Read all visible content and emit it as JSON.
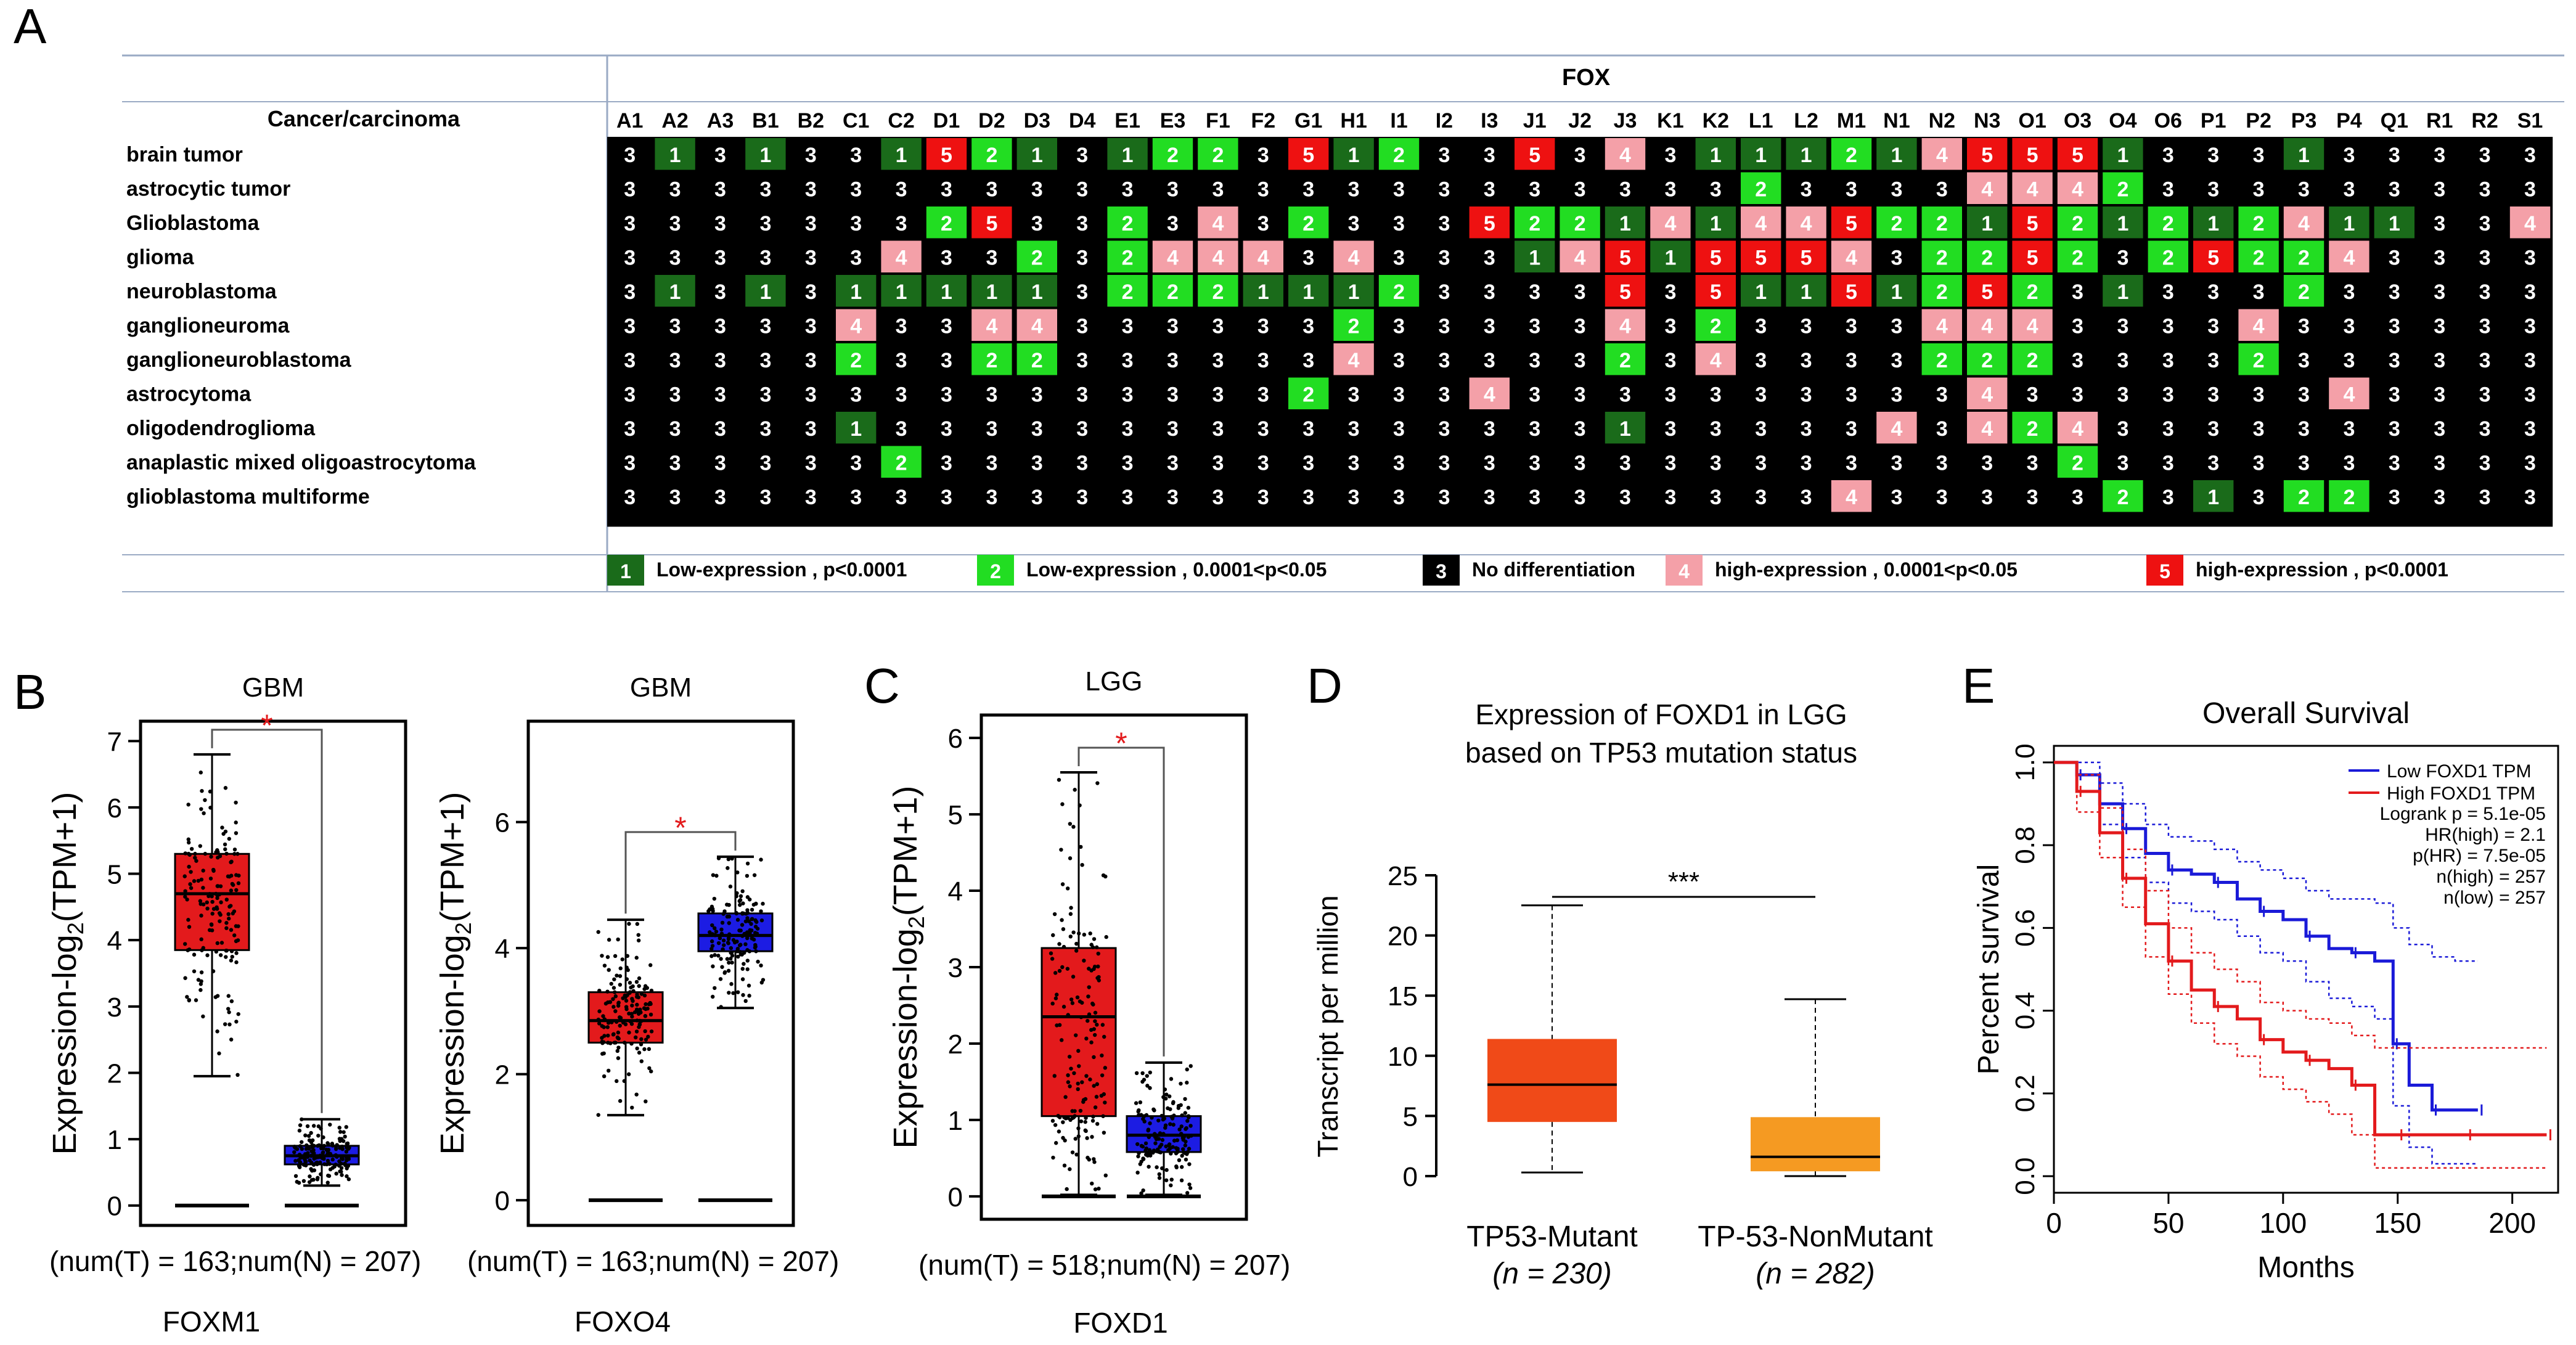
{
  "panel_letters": {
    "A": "A",
    "B": "B",
    "C": "C",
    "D": "D",
    "E": "E"
  },
  "chart_data": [
    {
      "panel": "A",
      "type": "table",
      "group_label": "FOX",
      "row_header": "Cancer/carcinoma",
      "columns": [
        "A1",
        "A2",
        "A3",
        "B1",
        "B2",
        "C1",
        "C2",
        "D1",
        "D2",
        "D3",
        "D4",
        "E1",
        "E3",
        "F1",
        "F2",
        "G1",
        "H1",
        "I1",
        "I2",
        "I3",
        "J1",
        "J2",
        "J3",
        "K1",
        "K2",
        "L1",
        "L2",
        "M1",
        "N1",
        "N2",
        "N3",
        "O1",
        "O3",
        "O4",
        "O6",
        "P1",
        "P2",
        "P3",
        "P4",
        "Q1",
        "R1",
        "R2",
        "S1"
      ],
      "rows": [
        {
          "name": "brain tumor",
          "values": [
            3,
            1,
            3,
            1,
            3,
            3,
            1,
            5,
            2,
            1,
            3,
            1,
            2,
            2,
            3,
            5,
            1,
            2,
            3,
            3,
            5,
            3,
            4,
            3,
            1,
            1,
            1,
            2,
            1,
            4,
            5,
            5,
            5,
            1,
            3,
            3,
            3,
            1,
            3,
            3,
            3,
            3,
            3
          ]
        },
        {
          "name": "astrocytic tumor",
          "values": [
            3,
            3,
            3,
            3,
            3,
            3,
            3,
            3,
            3,
            3,
            3,
            3,
            3,
            3,
            3,
            3,
            3,
            3,
            3,
            3,
            3,
            3,
            3,
            3,
            3,
            2,
            3,
            3,
            3,
            3,
            4,
            4,
            4,
            2,
            3,
            3,
            3,
            3,
            3,
            3,
            3,
            3,
            3
          ]
        },
        {
          "name": "Glioblastoma",
          "values": [
            3,
            3,
            3,
            3,
            3,
            3,
            3,
            2,
            5,
            3,
            3,
            2,
            3,
            4,
            3,
            2,
            3,
            3,
            3,
            5,
            2,
            2,
            1,
            4,
            1,
            4,
            4,
            5,
            2,
            2,
            1,
            5,
            2,
            1,
            2,
            1,
            2,
            4,
            1,
            1,
            3,
            3,
            4
          ]
        },
        {
          "name": "glioma",
          "values": [
            3,
            3,
            3,
            3,
            3,
            3,
            4,
            3,
            3,
            2,
            3,
            2,
            4,
            4,
            4,
            3,
            4,
            3,
            3,
            3,
            1,
            4,
            5,
            1,
            5,
            5,
            5,
            4,
            3,
            2,
            2,
            5,
            2,
            3,
            2,
            5,
            2,
            2,
            4,
            3,
            3,
            3,
            3
          ]
        },
        {
          "name": "neuroblastoma",
          "values": [
            3,
            1,
            3,
            1,
            3,
            1,
            1,
            1,
            1,
            1,
            3,
            2,
            2,
            2,
            1,
            1,
            1,
            2,
            3,
            3,
            3,
            3,
            5,
            3,
            5,
            1,
            1,
            5,
            1,
            2,
            5,
            2,
            3,
            1,
            3,
            3,
            3,
            2,
            3,
            3,
            3,
            3,
            3
          ]
        },
        {
          "name": "ganglioneuroma",
          "values": [
            3,
            3,
            3,
            3,
            3,
            4,
            3,
            3,
            4,
            4,
            3,
            3,
            3,
            3,
            3,
            3,
            2,
            3,
            3,
            3,
            3,
            3,
            4,
            3,
            2,
            3,
            3,
            3,
            3,
            4,
            4,
            4,
            3,
            3,
            3,
            3,
            4,
            3,
            3,
            3,
            3,
            3,
            3
          ]
        },
        {
          "name": "ganglioneuroblastoma",
          "values": [
            3,
            3,
            3,
            3,
            3,
            2,
            3,
            3,
            2,
            2,
            3,
            3,
            3,
            3,
            3,
            3,
            4,
            3,
            3,
            3,
            3,
            3,
            2,
            3,
            4,
            3,
            3,
            3,
            3,
            2,
            2,
            2,
            3,
            3,
            3,
            3,
            2,
            3,
            3,
            3,
            3,
            3,
            3
          ]
        },
        {
          "name": "astrocytoma",
          "values": [
            3,
            3,
            3,
            3,
            3,
            3,
            3,
            3,
            3,
            3,
            3,
            3,
            3,
            3,
            3,
            2,
            3,
            3,
            3,
            4,
            3,
            3,
            3,
            3,
            3,
            3,
            3,
            3,
            3,
            3,
            4,
            3,
            3,
            3,
            3,
            3,
            3,
            3,
            4,
            3,
            3,
            3,
            3
          ]
        },
        {
          "name": "oligodendroglioma",
          "values": [
            3,
            3,
            3,
            3,
            3,
            1,
            3,
            3,
            3,
            3,
            3,
            3,
            3,
            3,
            3,
            3,
            3,
            3,
            3,
            3,
            3,
            3,
            1,
            3,
            3,
            3,
            3,
            3,
            4,
            3,
            4,
            2,
            4,
            3,
            3,
            3,
            3,
            3,
            3,
            3,
            3,
            3,
            3
          ]
        },
        {
          "name": "anaplastic mixed oligoastrocytoma",
          "values": [
            3,
            3,
            3,
            3,
            3,
            3,
            2,
            3,
            3,
            3,
            3,
            3,
            3,
            3,
            3,
            3,
            3,
            3,
            3,
            3,
            3,
            3,
            3,
            3,
            3,
            3,
            3,
            3,
            3,
            3,
            3,
            3,
            2,
            3,
            3,
            3,
            3,
            3,
            3,
            3,
            3,
            3,
            3
          ]
        },
        {
          "name": "glioblastoma multiforme",
          "values": [
            3,
            3,
            3,
            3,
            3,
            3,
            3,
            3,
            3,
            3,
            3,
            3,
            3,
            3,
            3,
            3,
            3,
            3,
            3,
            3,
            3,
            3,
            3,
            3,
            3,
            3,
            3,
            4,
            3,
            3,
            3,
            3,
            3,
            2,
            3,
            1,
            3,
            2,
            2,
            3,
            3,
            3,
            3
          ]
        }
      ],
      "legend": [
        {
          "code": "1",
          "label": "Low-expression , p<0.0001",
          "color": "#1a6b1a"
        },
        {
          "code": "2",
          "label": "Low-expression , 0.0001<p<0.05",
          "color": "#22dd22"
        },
        {
          "code": "3",
          "label": "No differentiation",
          "color": "#000000"
        },
        {
          "code": "4",
          "label": "high-expression , 0.0001<p<0.05",
          "color": "#f4a0a8"
        },
        {
          "code": "5",
          "label": "high-expression , p<0.0001",
          "color": "#ee1111"
        }
      ]
    },
    {
      "panel": "B",
      "type": "boxplot",
      "title": "GBM",
      "ylabel_pre": "Expression-log",
      "ylabel_sub": "2",
      "ylabel_post": "(TPM+1)",
      "ylim": [
        -0.3,
        7.3
      ],
      "yticks": [
        "0",
        "1",
        "2",
        "3",
        "4",
        "5",
        "6",
        "7"
      ],
      "boxes": [
        {
          "group": "Tumor",
          "color": "#e31a1c",
          "q1": 3.85,
          "median": 4.7,
          "q3": 5.3,
          "whisker_low": 1.95,
          "whisker_high": 6.8
        },
        {
          "group": "Normal",
          "color": "#1c1ce3",
          "q1": 0.62,
          "median": 0.75,
          "q3": 0.9,
          "whisker_low": 0.3,
          "whisker_high": 1.3
        }
      ],
      "significance": "*",
      "caption": "(num(T) = 163;num(N) = 207)",
      "gene": "FOXM1"
    },
    {
      "panel": "B",
      "type": "boxplot",
      "title": "GBM",
      "ylabel_pre": "Expression-log",
      "ylabel_sub": "2",
      "ylabel_post": "(TPM+1)",
      "ylim": [
        -0.4,
        7.6
      ],
      "yticks": [
        "0",
        "2",
        "4",
        "6"
      ],
      "boxes": [
        {
          "group": "Tumor",
          "color": "#e31a1c",
          "q1": 2.5,
          "median": 2.85,
          "q3": 3.3,
          "whisker_low": 1.35,
          "whisker_high": 4.45
        },
        {
          "group": "Normal",
          "color": "#1c1ce3",
          "q1": 3.95,
          "median": 4.2,
          "q3": 4.55,
          "whisker_low": 3.05,
          "whisker_high": 5.45
        }
      ],
      "significance": "*",
      "caption": "(num(T) = 163;num(N) = 207)",
      "gene": "FOXO4"
    },
    {
      "panel": "C",
      "type": "boxplot",
      "title": "LGG",
      "ylabel_pre": "Expression-log",
      "ylabel_sub": "2",
      "ylabel_post": "(TPM+1)",
      "ylim": [
        -0.3,
        6.3
      ],
      "yticks": [
        "0",
        "1",
        "2",
        "3",
        "4",
        "5",
        "6"
      ],
      "boxes": [
        {
          "group": "Tumor",
          "color": "#e31a1c",
          "q1": 1.05,
          "median": 2.35,
          "q3": 3.25,
          "whisker_low": 0.02,
          "whisker_high": 5.55
        },
        {
          "group": "Normal",
          "color": "#1c1ce3",
          "q1": 0.58,
          "median": 0.8,
          "q3": 1.05,
          "whisker_low": 0.02,
          "whisker_high": 1.75
        }
      ],
      "significance": "*",
      "caption": "(num(T) = 518;num(N) = 207)",
      "gene": "FOXD1"
    },
    {
      "panel": "D",
      "type": "boxplot",
      "title_lines": [
        "Expression of FOXD1 in LGG",
        "based on TP53 mutation status"
      ],
      "ylabel": "Transcript per million",
      "ylim": [
        0,
        25
      ],
      "yticks": [
        "0",
        "5",
        "10",
        "15",
        "20",
        "25"
      ],
      "boxes": [
        {
          "group": "TP53-Mutant",
          "n": "(n = 230)",
          "color": "#f04a18",
          "q1": 4.5,
          "median": 7.6,
          "q3": 11.4,
          "whisker_low": 0.3,
          "whisker_high": 22.5
        },
        {
          "group": "TP-53-NonMutant",
          "n": "(n = 282)",
          "color": "#f59a22",
          "q1": 0.4,
          "median": 1.6,
          "q3": 4.9,
          "whisker_low": 0.0,
          "whisker_high": 14.7
        }
      ],
      "significance": "***"
    },
    {
      "panel": "E",
      "type": "line",
      "title": "Overall Survival",
      "xlabel": "Months",
      "ylabel": "Percent survival",
      "xlim": [
        0,
        220
      ],
      "ylim": [
        -0.04,
        1.04
      ],
      "xticks": [
        "0",
        "50",
        "100",
        "150",
        "200"
      ],
      "yticks": [
        "0.0",
        "0.2",
        "0.4",
        "0.6",
        "0.8",
        "1.0"
      ],
      "legend": [
        "Low FOXD1 TPM",
        "High FOXD1 TPM"
      ],
      "stats": [
        "Logrank p = 5.1e-05",
        "HR(high) = 2.1",
        "p(HR) = 7.5e-05",
        "n(high) = 257",
        "n(low) = 257"
      ],
      "series": [
        {
          "name": "Low FOXD1 TPM",
          "color": "#1a1ad8",
          "x": [
            0,
            10,
            20,
            30,
            40,
            50,
            60,
            70,
            80,
            90,
            100,
            110,
            120,
            130,
            140,
            148,
            155,
            165,
            175,
            185
          ],
          "y": [
            1.0,
            0.97,
            0.9,
            0.84,
            0.78,
            0.74,
            0.73,
            0.71,
            0.67,
            0.64,
            0.62,
            0.58,
            0.55,
            0.54,
            0.52,
            0.32,
            0.22,
            0.16,
            0.16,
            0.16
          ],
          "upper": [
            1.0,
            1.0,
            0.95,
            0.9,
            0.85,
            0.82,
            0.81,
            0.79,
            0.76,
            0.74,
            0.72,
            0.69,
            0.67,
            0.67,
            0.66,
            0.6,
            0.56,
            0.53,
            0.52,
            0.52
          ],
          "lower": [
            1.0,
            0.93,
            0.85,
            0.77,
            0.71,
            0.66,
            0.64,
            0.62,
            0.58,
            0.54,
            0.52,
            0.47,
            0.43,
            0.41,
            0.38,
            0.17,
            0.07,
            0.03,
            0.03,
            0.03
          ]
        },
        {
          "name": "High FOXD1 TPM",
          "color": "#e31a1c",
          "x": [
            0,
            10,
            20,
            30,
            40,
            50,
            60,
            70,
            80,
            90,
            100,
            110,
            120,
            130,
            140,
            150,
            160,
            180,
            200,
            215
          ],
          "y": [
            1.0,
            0.93,
            0.83,
            0.72,
            0.61,
            0.52,
            0.45,
            0.41,
            0.38,
            0.33,
            0.3,
            0.28,
            0.26,
            0.22,
            0.1,
            0.1,
            0.1,
            0.1,
            0.1,
            0.1
          ],
          "upper": [
            1.0,
            0.97,
            0.89,
            0.79,
            0.69,
            0.6,
            0.54,
            0.5,
            0.47,
            0.42,
            0.4,
            0.38,
            0.37,
            0.34,
            0.31,
            0.31,
            0.31,
            0.31,
            0.31,
            0.31
          ],
          "lower": [
            1.0,
            0.88,
            0.77,
            0.65,
            0.53,
            0.44,
            0.37,
            0.32,
            0.29,
            0.24,
            0.21,
            0.18,
            0.15,
            0.1,
            0.02,
            0.02,
            0.02,
            0.02,
            0.02,
            0.02
          ]
        }
      ]
    }
  ]
}
